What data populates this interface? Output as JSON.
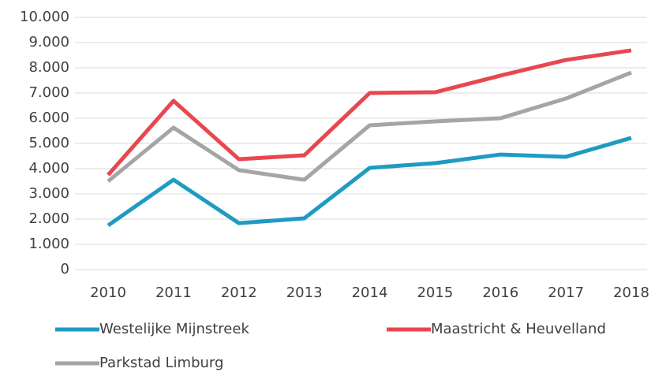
{
  "chart_data": {
    "type": "line",
    "categories": [
      "2010",
      "2011",
      "2012",
      "2013",
      "2014",
      "2015",
      "2016",
      "2017",
      "2018"
    ],
    "series": [
      {
        "name": "Westelijke Mijnstreek",
        "color": "#1f9bc1",
        "values": [
          1750,
          3560,
          1840,
          2030,
          4030,
          4220,
          4560,
          4470,
          5220
        ]
      },
      {
        "name": "Maastricht & Heuvelland",
        "color": "#e8474f",
        "values": [
          3750,
          6690,
          4375,
          4530,
          7000,
          7030,
          7690,
          8310,
          8690
        ]
      },
      {
        "name": "Parkstad Limburg",
        "color": "#a5a5a5",
        "values": [
          3500,
          5625,
          3940,
          3560,
          5720,
          5875,
          6000,
          6780,
          7810
        ]
      }
    ],
    "ylim": [
      0,
      10000
    ],
    "yticks": [
      0,
      {
        "value": 1000,
        "label": "1.000"
      },
      {
        "value": 2000,
        "label": "2.000"
      },
      {
        "value": 3000,
        "label": "3.000"
      },
      {
        "value": 4000,
        "label": "4.000"
      },
      {
        "value": 5000,
        "label": "5.000"
      },
      {
        "value": 6000,
        "label": "6.000"
      },
      {
        "value": 7000,
        "label": "7.000"
      },
      {
        "value": 8000,
        "label": "8.000"
      },
      {
        "value": 9000,
        "label": "9.000"
      },
      {
        "value": 10000,
        "label": "10.000"
      }
    ],
    "grid": true,
    "legend": "bottom"
  }
}
